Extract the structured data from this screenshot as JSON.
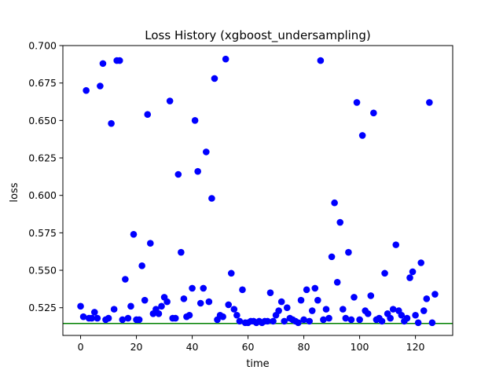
{
  "chart_data": {
    "type": "scatter",
    "title": "Loss History (xgboost_undersampling)",
    "xlabel": "time",
    "ylabel": "loss",
    "xlim": [
      -6.35,
      133.35
    ],
    "ylim": [
      0.5065,
      0.7
    ],
    "xticks": [
      "0",
      "20",
      "40",
      "60",
      "80",
      "100",
      "120"
    ],
    "yticks": [
      "0.525",
      "0.550",
      "0.575",
      "0.600",
      "0.625",
      "0.650",
      "0.675",
      "0.700"
    ],
    "grid": false,
    "colors": {
      "points": "#0000ff",
      "baseline": "#008000"
    },
    "baseline": 0.5145,
    "x": [
      0,
      1,
      2,
      3,
      4,
      5,
      6,
      7,
      8,
      9,
      10,
      11,
      12,
      13,
      14,
      15,
      16,
      17,
      18,
      19,
      20,
      21,
      22,
      23,
      24,
      25,
      26,
      27,
      28,
      29,
      30,
      31,
      32,
      33,
      34,
      35,
      36,
      37,
      38,
      39,
      40,
      41,
      42,
      43,
      44,
      45,
      46,
      47,
      48,
      49,
      50,
      51,
      52,
      53,
      54,
      55,
      56,
      57,
      58,
      59,
      60,
      61,
      62,
      63,
      64,
      65,
      66,
      67,
      68,
      69,
      70,
      71,
      72,
      73,
      74,
      75,
      76,
      77,
      78,
      79,
      80,
      81,
      82,
      83,
      84,
      85,
      86,
      87,
      88,
      89,
      90,
      91,
      92,
      93,
      94,
      95,
      96,
      97,
      98,
      99,
      100,
      101,
      102,
      103,
      104,
      105,
      106,
      107,
      108,
      109,
      110,
      111,
      112,
      113,
      114,
      115,
      116,
      117,
      118,
      119,
      120,
      121,
      122,
      123,
      124,
      125,
      126,
      127
    ],
    "y": [
      0.526,
      0.519,
      0.67,
      0.518,
      0.518,
      0.522,
      0.518,
      0.673,
      0.688,
      0.517,
      0.518,
      0.648,
      0.524,
      0.69,
      0.69,
      0.517,
      0.544,
      0.518,
      0.526,
      0.574,
      0.517,
      0.517,
      0.553,
      0.53,
      0.654,
      0.568,
      0.521,
      0.524,
      0.521,
      0.526,
      0.532,
      0.529,
      0.663,
      0.518,
      0.518,
      0.614,
      0.562,
      0.531,
      0.519,
      0.52,
      0.538,
      0.65,
      0.616,
      0.528,
      0.538,
      0.629,
      0.529,
      0.598,
      0.678,
      0.517,
      0.52,
      0.519,
      0.691,
      0.527,
      0.548,
      0.524,
      0.52,
      0.516,
      0.537,
      0.515,
      0.515,
      0.516,
      0.516,
      0.515,
      0.516,
      0.515,
      0.516,
      0.516,
      0.535,
      0.516,
      0.52,
      0.523,
      0.529,
      0.516,
      0.525,
      0.518,
      0.517,
      0.516,
      0.515,
      0.53,
      0.517,
      0.537,
      0.516,
      0.523,
      0.538,
      0.53,
      0.69,
      0.517,
      0.524,
      0.518,
      0.559,
      0.595,
      0.542,
      0.582,
      0.524,
      0.518,
      0.562,
      0.517,
      0.532,
      0.662,
      0.517,
      0.64,
      0.523,
      0.521,
      0.533,
      0.655,
      0.517,
      0.518,
      0.516,
      0.548,
      0.521,
      0.518,
      0.524,
      0.567,
      0.523,
      0.52,
      0.516,
      0.518,
      0.545,
      0.549,
      0.52,
      0.515,
      0.555,
      0.523,
      0.531,
      0.662,
      0.515,
      0.534
    ]
  }
}
